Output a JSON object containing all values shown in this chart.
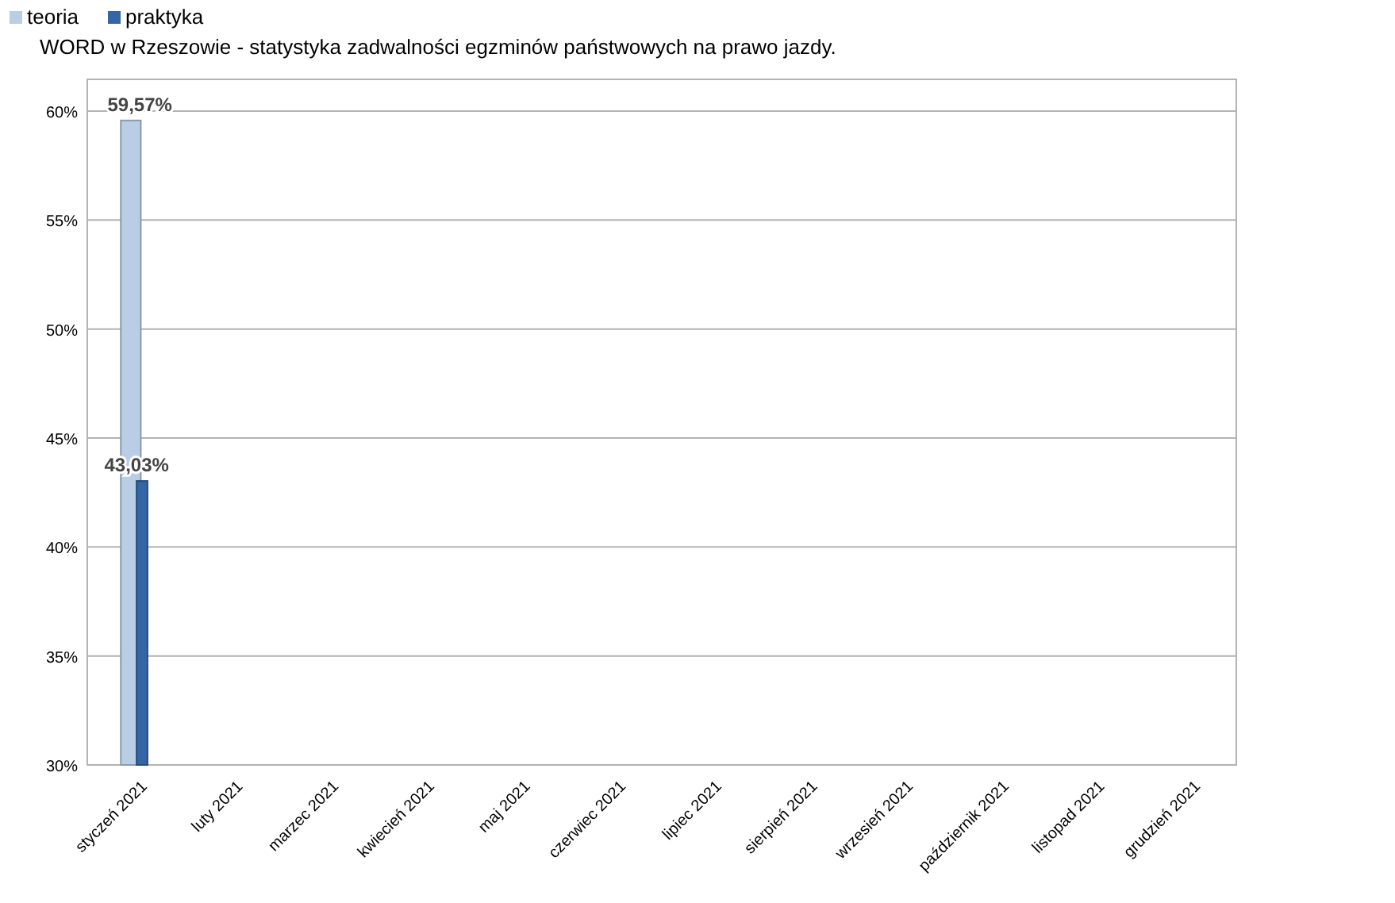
{
  "chart_data": {
    "type": "bar",
    "title": "WORD w Rzeszowie - statystyka zadwalności egzminów państwowych na prawo jazdy.",
    "categories": [
      "styczeń 2021",
      "luty 2021",
      "marzec 2021",
      "kwiecień 2021",
      "maj 2021",
      "czerwiec 2021",
      "lipiec 2021",
      "sierpień 2021",
      "wrzesień 2021",
      "październik 2021",
      "listopad 2021",
      "grudzień 2021"
    ],
    "series": [
      {
        "name": "teoria",
        "color": "#b9cde5",
        "values": [
          59.57,
          null,
          null,
          null,
          null,
          null,
          null,
          null,
          null,
          null,
          null,
          null
        ],
        "value_labels": [
          "59,57%",
          null,
          null,
          null,
          null,
          null,
          null,
          null,
          null,
          null,
          null,
          null
        ]
      },
      {
        "name": "praktyka",
        "color": "#3465a4",
        "values": [
          43.03,
          null,
          null,
          null,
          null,
          null,
          null,
          null,
          null,
          null,
          null,
          null
        ],
        "value_labels": [
          "43,03%",
          null,
          null,
          null,
          null,
          null,
          null,
          null,
          null,
          null,
          null,
          null
        ]
      }
    ],
    "ylim": [
      30,
      60
    ],
    "yticks": [
      {
        "value": 30,
        "label": "30%"
      },
      {
        "value": 35,
        "label": "35%"
      },
      {
        "value": 40,
        "label": "40%"
      },
      {
        "value": 45,
        "label": "45%"
      },
      {
        "value": 50,
        "label": "50%"
      },
      {
        "value": 55,
        "label": "55%"
      },
      {
        "value": 60,
        "label": "60%"
      }
    ],
    "grid": "y",
    "legend": "top left"
  }
}
